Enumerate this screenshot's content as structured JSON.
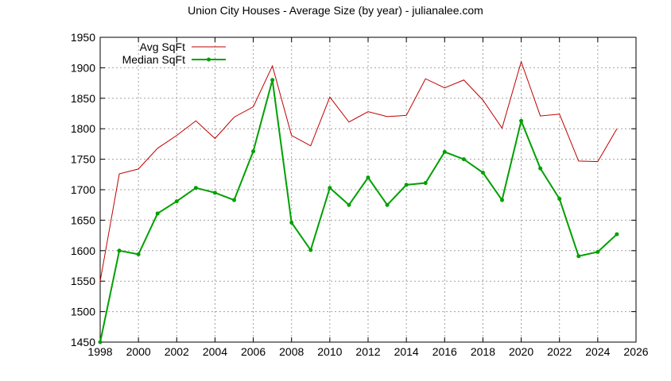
{
  "chart_data": {
    "type": "line",
    "title": "Union City Houses - Average Size (by year) - julianalee.com",
    "xlabel": "",
    "ylabel": "",
    "xlim": [
      1998,
      2026
    ],
    "ylim": [
      1450,
      1950
    ],
    "x_ticks": [
      1998,
      2000,
      2002,
      2004,
      2006,
      2008,
      2010,
      2012,
      2014,
      2016,
      2018,
      2020,
      2022,
      2024,
      2026
    ],
    "y_ticks": [
      1450,
      1500,
      1550,
      1600,
      1650,
      1700,
      1750,
      1800,
      1850,
      1900,
      1950
    ],
    "grid": true,
    "legend_position": "top-left",
    "x": [
      1998,
      1999,
      2000,
      2001,
      2002,
      2003,
      2004,
      2005,
      2006,
      2007,
      2008,
      2009,
      2010,
      2011,
      2012,
      2013,
      2014,
      2015,
      2016,
      2017,
      2018,
      2019,
      2020,
      2021,
      2022,
      2023,
      2024,
      2025
    ],
    "series": [
      {
        "name": "Avg SqFt",
        "color": "#c00000",
        "marker": false,
        "values": [
          1550,
          1726,
          1734,
          1768,
          1789,
          1813,
          1784,
          1819,
          1836,
          1903,
          1789,
          1772,
          1852,
          1811,
          1828,
          1820,
          1822,
          1882,
          1867,
          1880,
          1847,
          1801,
          1910,
          1821,
          1824,
          1747,
          1746,
          1800
        ]
      },
      {
        "name": "Median SqFt",
        "color": "#00a000",
        "marker": true,
        "values": [
          1450,
          1600,
          1594,
          1661,
          1681,
          1703,
          1695,
          1683,
          1763,
          1880,
          1646,
          1601,
          1703,
          1675,
          1720,
          1675,
          1708,
          1711,
          1762,
          1750,
          1728,
          1683,
          1813,
          1735,
          1685,
          1591,
          1598,
          1627
        ]
      }
    ]
  }
}
